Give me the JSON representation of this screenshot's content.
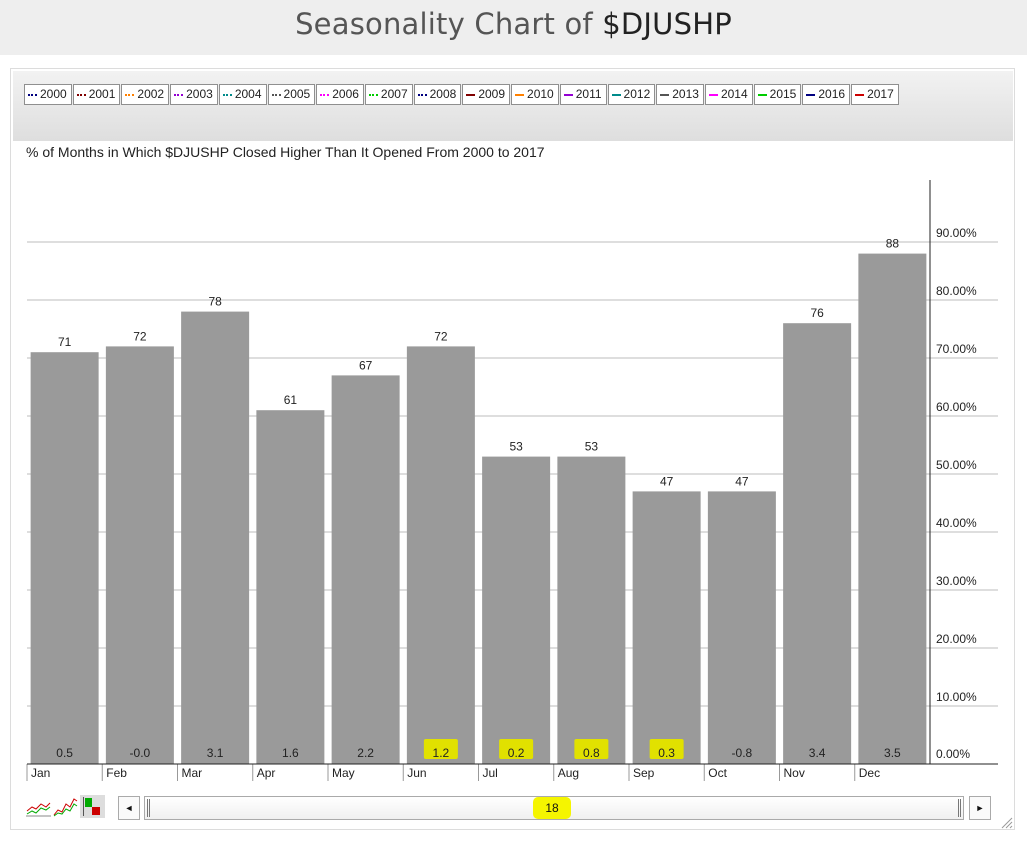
{
  "page": {
    "title_prefix": "Seasonality Chart of ",
    "title_symbol": "$DJUSHP"
  },
  "legend": {
    "items": [
      {
        "label": "2000",
        "color": "#000080",
        "style": "dotted"
      },
      {
        "label": "2001",
        "color": "#800000",
        "style": "dotted"
      },
      {
        "label": "2002",
        "color": "#ff8000",
        "style": "dotted"
      },
      {
        "label": "2003",
        "color": "#9400d3",
        "style": "dotted"
      },
      {
        "label": "2004",
        "color": "#008b8b",
        "style": "dotted"
      },
      {
        "label": "2005",
        "color": "#555555",
        "style": "dotted"
      },
      {
        "label": "2006",
        "color": "#ff00ff",
        "style": "dotted"
      },
      {
        "label": "2007",
        "color": "#00cc00",
        "style": "dotted"
      },
      {
        "label": "2008",
        "color": "#000080",
        "style": "dotted"
      },
      {
        "label": "2009",
        "color": "#800000",
        "style": "solid"
      },
      {
        "label": "2010",
        "color": "#ff8000",
        "style": "solid"
      },
      {
        "label": "2011",
        "color": "#9400d3",
        "style": "solid"
      },
      {
        "label": "2012",
        "color": "#008b8b",
        "style": "solid"
      },
      {
        "label": "2013",
        "color": "#555555",
        "style": "solid"
      },
      {
        "label": "2014",
        "color": "#ff00ff",
        "style": "solid"
      },
      {
        "label": "2015",
        "color": "#00cc00",
        "style": "solid"
      },
      {
        "label": "2016",
        "color": "#000080",
        "style": "solid"
      },
      {
        "label": "2017",
        "color": "#cc0000",
        "style": "solid"
      }
    ]
  },
  "chart_data": {
    "type": "bar",
    "subtitle": "% of Months in Which $DJUSHP Closed Higher Than It Opened From 2000 to 2017",
    "categories": [
      "Jan",
      "Feb",
      "Mar",
      "Apr",
      "May",
      "Jun",
      "Jul",
      "Aug",
      "Sep",
      "Oct",
      "Nov",
      "Dec"
    ],
    "values": [
      71,
      72,
      78,
      61,
      67,
      72,
      53,
      53,
      47,
      47,
      76,
      88
    ],
    "avg_change_labels": [
      "0.5",
      "-0.0",
      "3.1",
      "1.6",
      "2.2",
      "1.2",
      "0.2",
      "0.8",
      "0.3",
      "-0.8",
      "3.4",
      "3.5"
    ],
    "highlighted_months": [
      "Jun",
      "Jul",
      "Aug",
      "Sep"
    ],
    "ylim": [
      0,
      100
    ],
    "yticks": [
      "0.00%",
      "10.00%",
      "20.00%",
      "30.00%",
      "40.00%",
      "50.00%",
      "60.00%",
      "70.00%",
      "80.00%",
      "90.00%"
    ],
    "y_axis_side": "right",
    "grid": true,
    "bar_color": "#9a9a9a",
    "highlight_color": "#e1e100"
  },
  "controls": {
    "period_count": "18",
    "scroll_left": "◄",
    "scroll_right": "►"
  }
}
